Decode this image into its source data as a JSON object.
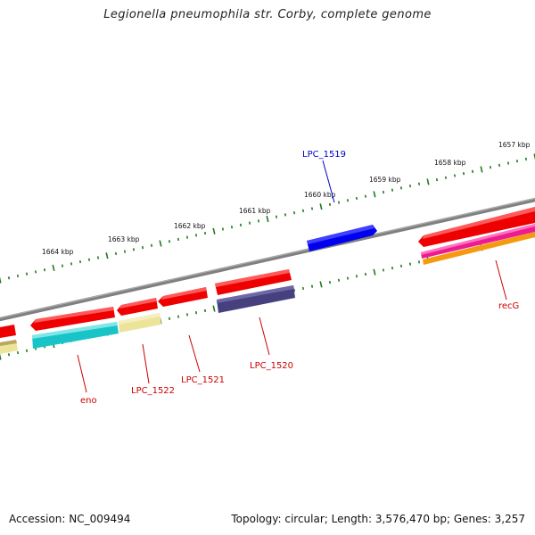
{
  "title": "Legionella pneumophila str. Corby, complete genome",
  "footer": {
    "accession": "Accession: NC_009494",
    "summary": "Topology: circular; Length: 3,576,470 bp; Genes: 3,257"
  },
  "ruler": {
    "labels": [
      "1657 kbp",
      "1658 kbp",
      "1659 kbp",
      "1660 kbp",
      "1661 kbp",
      "1662 kbp",
      "1663 kbp",
      "1664 kbp"
    ]
  },
  "genes": [
    {
      "name": "LPC_1519",
      "color": "#0000e8"
    },
    {
      "name": "recG",
      "color": "#cc0000"
    },
    {
      "name": "LPC_1520",
      "color": "#cc0000"
    },
    {
      "name": "LPC_1521",
      "color": "#cc0000"
    },
    {
      "name": "LPC_1522",
      "color": "#cc0000"
    },
    {
      "name": "eno",
      "color": "#cc0000"
    }
  ],
  "colors": {
    "backbone": "#808080",
    "ticks": "#1e7a1e",
    "forward_cds": "#ee0000",
    "blue_cds": "#0000ee",
    "cyan_cds": "#18c4c8",
    "khaki_cds": "#ece49a",
    "slate_cds": "#46407e",
    "magenta_cds": "#ee1a90",
    "orange_cds": "#f59a10",
    "label_blue": "#0000cc",
    "label_red": "#cc0000"
  }
}
